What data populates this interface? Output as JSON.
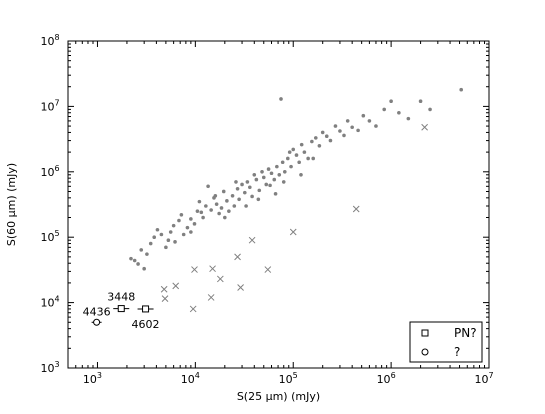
{
  "chart_data": {
    "type": "scatter",
    "xlabel": "S(25 μm) (mJy)",
    "ylabel": "S(60 μm) (mJy)",
    "xscale": "log",
    "yscale": "log",
    "xlim": [
      500,
      10000000
    ],
    "ylim": [
      1000,
      100000000
    ],
    "x_ticks": [
      {
        "value": 1000,
        "base": "10",
        "exp": "3"
      },
      {
        "value": 10000,
        "base": "10",
        "exp": "4"
      },
      {
        "value": 100000,
        "base": "10",
        "exp": "5"
      },
      {
        "value": 1000000,
        "base": "10",
        "exp": "6"
      },
      {
        "value": 10000000,
        "base": "10",
        "exp": "7"
      }
    ],
    "y_ticks": [
      {
        "value": 1000,
        "base": "10",
        "exp": "3"
      },
      {
        "value": 10000,
        "base": "10",
        "exp": "4"
      },
      {
        "value": 100000,
        "base": "10",
        "exp": "5"
      },
      {
        "value": 1000000,
        "base": "10",
        "exp": "6"
      },
      {
        "value": 10000000,
        "base": "10",
        "exp": "7"
      },
      {
        "value": 100000000,
        "base": "10",
        "exp": "8"
      }
    ],
    "grid": false,
    "legend_position": "lower-right",
    "legend": [
      {
        "marker": "square",
        "label": "PN?"
      },
      {
        "marker": "circle",
        "label": "?"
      }
    ],
    "colors": {
      "dots": "#808080",
      "crosses": "#808080",
      "labeled": "#000000"
    },
    "series": [
      {
        "marker": "dot",
        "points": [
          [
            2200,
            47000
          ],
          [
            2400,
            44000
          ],
          [
            2600,
            39000
          ],
          [
            2800,
            64000
          ],
          [
            3000,
            33000
          ],
          [
            3200,
            55000
          ],
          [
            3500,
            80000
          ],
          [
            3800,
            100000
          ],
          [
            4100,
            130000
          ],
          [
            4500,
            110000
          ],
          [
            5000,
            70000
          ],
          [
            5300,
            90000
          ],
          [
            5600,
            120000
          ],
          [
            6000,
            150000
          ],
          [
            6200,
            85000
          ],
          [
            6800,
            180000
          ],
          [
            7200,
            220000
          ],
          [
            7600,
            110000
          ],
          [
            8300,
            140000
          ],
          [
            9000,
            190000
          ],
          [
            9800,
            160000
          ],
          [
            10500,
            250000
          ],
          [
            11000,
            350000
          ],
          [
            12000,
            200000
          ],
          [
            12800,
            300000
          ],
          [
            13500,
            600000
          ],
          [
            14500,
            260000
          ],
          [
            15500,
            400000
          ],
          [
            16500,
            320000
          ],
          [
            17500,
            230000
          ],
          [
            18500,
            280000
          ],
          [
            19500,
            500000
          ],
          [
            21000,
            360000
          ],
          [
            22000,
            250000
          ],
          [
            24000,
            430000
          ],
          [
            25000,
            300000
          ],
          [
            27000,
            550000
          ],
          [
            28000,
            380000
          ],
          [
            30000,
            640000
          ],
          [
            32000,
            480000
          ],
          [
            34000,
            700000
          ],
          [
            36000,
            580000
          ],
          [
            38000,
            420000
          ],
          [
            40000,
            900000
          ],
          [
            42000,
            760000
          ],
          [
            45000,
            520000
          ],
          [
            48000,
            1000000
          ],
          [
            50000,
            820000
          ],
          [
            53000,
            640000
          ],
          [
            56000,
            1100000
          ],
          [
            60000,
            950000
          ],
          [
            64000,
            760000
          ],
          [
            68000,
            1200000
          ],
          [
            72000,
            900000
          ],
          [
            75000,
            13000000
          ],
          [
            78000,
            1400000
          ],
          [
            82000,
            1000000
          ],
          [
            88000,
            1600000
          ],
          [
            95000,
            1200000
          ],
          [
            100000,
            2200000
          ],
          [
            108000,
            1800000
          ],
          [
            115000,
            1400000
          ],
          [
            122000,
            2600000
          ],
          [
            130000,
            2000000
          ],
          [
            142000,
            1600000
          ],
          [
            155000,
            2900000
          ],
          [
            170000,
            3300000
          ],
          [
            185000,
            2500000
          ],
          [
            200000,
            4000000
          ],
          [
            220000,
            3500000
          ],
          [
            240000,
            3000000
          ],
          [
            270000,
            5000000
          ],
          [
            300000,
            4200000
          ],
          [
            330000,
            3600000
          ],
          [
            360000,
            6000000
          ],
          [
            400000,
            4800000
          ],
          [
            460000,
            4300000
          ],
          [
            520000,
            7200000
          ],
          [
            600000,
            6000000
          ],
          [
            700000,
            5000000
          ],
          [
            850000,
            9000000
          ],
          [
            1000000,
            12000000
          ],
          [
            1200000,
            8000000
          ],
          [
            1500000,
            6500000
          ],
          [
            2000000,
            12000000
          ],
          [
            2500000,
            9000000
          ],
          [
            5200000,
            18000000
          ],
          [
            9000,
            120000
          ],
          [
            11500,
            240000
          ],
          [
            16000,
            430000
          ],
          [
            20000,
            200000
          ],
          [
            26000,
            700000
          ],
          [
            33000,
            300000
          ],
          [
            44000,
            380000
          ],
          [
            58000,
            620000
          ],
          [
            66000,
            460000
          ],
          [
            80000,
            700000
          ],
          [
            92000,
            2000000
          ],
          [
            120000,
            900000
          ],
          [
            160000,
            1600000
          ]
        ]
      },
      {
        "marker": "cross",
        "points": [
          [
            4800,
            16000
          ],
          [
            4900,
            11500
          ],
          [
            6300,
            18000
          ],
          [
            9500,
            8000
          ],
          [
            9800,
            32000
          ],
          [
            14500,
            12000
          ],
          [
            15000,
            33000
          ],
          [
            18000,
            23000
          ],
          [
            27000,
            50000
          ],
          [
            29000,
            17000
          ],
          [
            38000,
            90000
          ],
          [
            55000,
            32000
          ],
          [
            100000,
            120000
          ],
          [
            440000,
            270000
          ],
          [
            2200000,
            4800000
          ]
        ]
      }
    ],
    "labeled_points": [
      {
        "label": "3448",
        "marker": "square",
        "x": 1750,
        "y": 8100
      },
      {
        "label": "4602",
        "marker": "square",
        "x": 3100,
        "y": 8000
      },
      {
        "label": "4436",
        "marker": "circle",
        "x": 980,
        "y": 5000
      }
    ]
  }
}
